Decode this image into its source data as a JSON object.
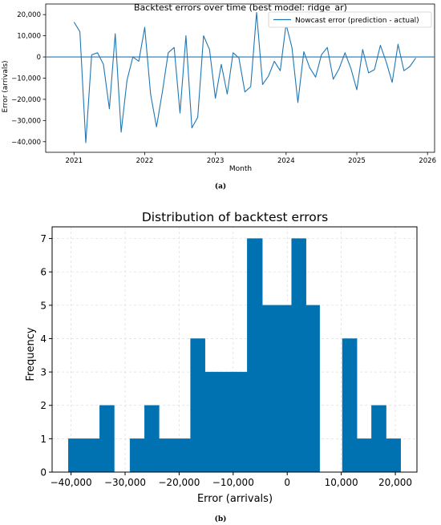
{
  "chart_data": [
    {
      "type": "line",
      "title": "Backtest errors over time (best model: ridge_ar)",
      "xlabel": "Month",
      "ylabel": "Error (arrivals)",
      "xlim": [
        2020.6,
        2026.1
      ],
      "ylim": [
        -45000,
        25000
      ],
      "xticks": [
        2021,
        2022,
        2023,
        2024,
        2025,
        2026
      ],
      "xtick_labels": [
        "2021",
        "2022",
        "2023",
        "2024",
        "2025",
        "2026"
      ],
      "yticks": [
        20000,
        10000,
        0,
        -10000,
        -20000,
        -30000,
        -40000
      ],
      "ytick_labels": [
        "20,000",
        "10,000",
        "0",
        "−10,000",
        "−20,000",
        "−30,000",
        "−40,000"
      ],
      "grid": false,
      "legend_position": "top-right",
      "zero_line": 0,
      "series": [
        {
          "name": "Nowcast error (prediction - actual)",
          "color": "#1f77b4",
          "x": [
            2021.0,
            2021.083,
            2021.167,
            2021.25,
            2021.333,
            2021.417,
            2021.5,
            2021.583,
            2021.667,
            2021.75,
            2021.833,
            2021.917,
            2022.0,
            2022.083,
            2022.167,
            2022.25,
            2022.333,
            2022.417,
            2022.5,
            2022.583,
            2022.667,
            2022.75,
            2022.833,
            2022.917,
            2023.0,
            2023.083,
            2023.167,
            2023.25,
            2023.333,
            2023.417,
            2023.5,
            2023.583,
            2023.667,
            2023.75,
            2023.833,
            2023.917,
            2024.0,
            2024.083,
            2024.167,
            2024.25,
            2024.333,
            2024.417,
            2024.5,
            2024.583,
            2024.667,
            2024.75,
            2024.833,
            2024.917,
            2025.0,
            2025.083,
            2025.167,
            2025.25,
            2025.333,
            2025.417,
            2025.5,
            2025.583,
            2025.667,
            2025.75,
            2025.833
          ],
          "y": [
            16500,
            12000,
            -40500,
            1000,
            2000,
            -3500,
            -24500,
            11000,
            -35500,
            -11000,
            0,
            -2000,
            14000,
            -17500,
            -33000,
            -16500,
            2000,
            4500,
            -26500,
            10000,
            -33500,
            -28500,
            10000,
            3500,
            -19500,
            -3500,
            -17500,
            2000,
            -500,
            -16500,
            -14000,
            21000,
            -13000,
            -9000,
            -2000,
            -6500,
            15500,
            4500,
            -21500,
            2500,
            -5000,
            -9500,
            1000,
            4500,
            -10500,
            -5500,
            2000,
            -5500,
            -15500,
            3500,
            -7500,
            -6000,
            5500,
            -2500,
            -12000,
            6000,
            -6500,
            -4500,
            -500
          ]
        }
      ]
    },
    {
      "type": "bar",
      "subtype": "histogram",
      "title": "Distribution of backtest errors",
      "xlabel": "Error (arrivals)",
      "ylabel": "Frequency",
      "xlim": [
        -43500,
        24000
      ],
      "ylim": [
        0,
        7.35
      ],
      "xticks": [
        -40000,
        -30000,
        -20000,
        -10000,
        0,
        10000,
        20000
      ],
      "xtick_labels": [
        "−40,000",
        "−30,000",
        "−20,000",
        "−10,000",
        "0",
        "10,000",
        "20,000"
      ],
      "yticks": [
        0,
        1,
        2,
        3,
        4,
        5,
        6,
        7
      ],
      "ytick_labels": [
        "0",
        "1",
        "2",
        "3",
        "4",
        "5",
        "6",
        "7"
      ],
      "grid": true,
      "color": "#0072b2",
      "bin_edges": [
        -40500,
        -37200,
        -34700,
        -32000,
        -29100,
        -26400,
        -23700,
        -21000,
        -17900,
        -15200,
        -12500,
        -9900,
        -7400,
        -4600,
        -1900,
        800,
        3500,
        6000,
        8800,
        10200,
        12900,
        15600,
        18300,
        21000
      ],
      "counts": [
        1,
        1,
        2,
        0,
        1,
        2,
        1,
        1,
        4,
        3,
        3,
        3,
        7,
        5,
        5,
        7,
        5,
        0,
        0,
        4,
        1,
        2,
        1
      ]
    }
  ],
  "captions": {
    "a": "(a)",
    "b": "(b)"
  }
}
